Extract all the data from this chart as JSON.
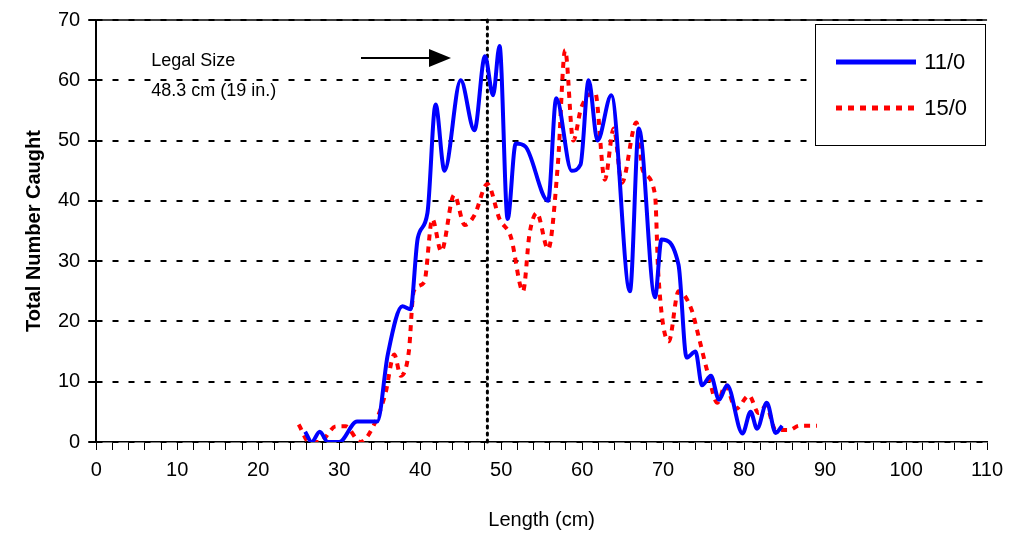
{
  "chart_data": {
    "type": "line",
    "xlabel": "Length (cm)",
    "ylabel": "Total Number Caught",
    "xlim": [
      0,
      110
    ],
    "ylim": [
      0,
      70
    ],
    "xticks": [
      0,
      {
        "value": 2,
        "label": null
      },
      {
        "value": 4,
        "label": null
      },
      {
        "value": 6,
        "label": null
      },
      {
        "value": 8,
        "label": null
      },
      10,
      {
        "value": 12,
        "label": null
      },
      {
        "value": 14,
        "label": null
      },
      {
        "value": 16,
        "label": null
      },
      {
        "value": 18,
        "label": null
      },
      20,
      {
        "value": 22,
        "label": null
      },
      {
        "value": 24,
        "label": null
      },
      {
        "value": 26,
        "label": null
      },
      {
        "value": 28,
        "label": null
      },
      30,
      {
        "value": 32,
        "label": null
      },
      {
        "value": 34,
        "label": null
      },
      {
        "value": 36,
        "label": null
      },
      {
        "value": 38,
        "label": null
      },
      40,
      {
        "value": 42,
        "label": null
      },
      {
        "value": 44,
        "label": null
      },
      {
        "value": 46,
        "label": null
      },
      {
        "value": 48,
        "label": null
      },
      50,
      {
        "value": 52,
        "label": null
      },
      {
        "value": 54,
        "label": null
      },
      {
        "value": 56,
        "label": null
      },
      {
        "value": 58,
        "label": null
      },
      60,
      {
        "value": 62,
        "label": null
      },
      {
        "value": 64,
        "label": null
      },
      {
        "value": 66,
        "label": null
      },
      {
        "value": 68,
        "label": null
      },
      70,
      {
        "value": 72,
        "label": null
      },
      {
        "value": 74,
        "label": null
      },
      {
        "value": 76,
        "label": null
      },
      {
        "value": 78,
        "label": null
      },
      80,
      {
        "value": 82,
        "label": null
      },
      {
        "value": 84,
        "label": null
      },
      {
        "value": 86,
        "label": null
      },
      {
        "value": 88,
        "label": null
      },
      90,
      {
        "value": 92,
        "label": null
      },
      {
        "value": 94,
        "label": null
      },
      {
        "value": 96,
        "label": null
      },
      {
        "value": 98,
        "label": null
      },
      100,
      {
        "value": 102,
        "label": null
      },
      {
        "value": 104,
        "label": null
      },
      {
        "value": 106,
        "label": null
      },
      {
        "value": 108,
        "label": null
      },
      110
    ],
    "yticks": [
      0,
      10,
      20,
      30,
      40,
      50,
      60,
      70
    ],
    "grid": "y",
    "legend": "top right",
    "marker": "none",
    "ref_lines": [
      {
        "axis": "x",
        "value": 48.3,
        "line_style": "dotted",
        "color": "#000000"
      }
    ],
    "annotations": [
      "Legal Size\n48.3 cm (19 in.)"
    ],
    "series": [
      {
        "name": "11/0",
        "color": "#0000ff",
        "line_style": "solid",
        "x": [
          25.8,
          26.6,
          27.6,
          28.6,
          30,
          32.2,
          34.7,
          36,
          37.8,
          38.8,
          39.7,
          40.9,
          41.9,
          43,
          45,
          46.7,
          48,
          49,
          49.8,
          50.8,
          51.8,
          53,
          55.8,
          56.8,
          58.7,
          59.8,
          60.8,
          61.9,
          63.6,
          65.9,
          67,
          69,
          69.8,
          71.9,
          72.9,
          74,
          74.8,
          75.9,
          76.9,
          77.9,
          79.8,
          80.8,
          81.6,
          82.8,
          83.9,
          84.7
        ],
        "values": [
          1.7,
          0,
          1.7,
          0,
          0,
          3.4,
          3.4,
          14.5,
          22.5,
          22,
          33.8,
          38,
          56,
          45,
          60,
          51.7,
          64,
          57.5,
          65.7,
          37,
          49.5,
          49,
          40,
          57,
          45,
          46,
          60,
          50,
          57.5,
          25,
          52,
          24,
          33.6,
          29.4,
          14,
          15,
          9.4,
          11,
          7,
          9.4,
          1.4,
          5,
          2.2,
          6.5,
          1.5,
          2.7
        ]
      },
      {
        "name": "15/0",
        "color": "#ff0000",
        "line_style": "dashed",
        "x": [
          25,
          26.3,
          27.6,
          29.6,
          30.8,
          32.6,
          34.5,
          35.7,
          36.8,
          37.6,
          38.6,
          39.2,
          40.5,
          41.5,
          42.6,
          44.2,
          45.5,
          46.7,
          48.3,
          49.8,
          51.2,
          52.7,
          53.5,
          54.4,
          55.8,
          57,
          57.9,
          58.9,
          59.9,
          61.6,
          62.8,
          63.9,
          64.9,
          66.7,
          67.5,
          69,
          69.4,
          70.7,
          71.9,
          73.5,
          74.4,
          75.6,
          76.7,
          77.7,
          79,
          80.6,
          81.8,
          82.7,
          83.9,
          85.6,
          86.8,
          89
        ],
        "values": [
          2.9,
          0,
          0,
          2.6,
          2.6,
          0,
          3.4,
          8,
          14.5,
          11,
          15,
          25,
          26.5,
          37,
          31.6,
          41,
          36,
          37.6,
          42.8,
          37,
          34,
          25,
          34.5,
          38,
          32,
          46,
          65,
          50,
          55.5,
          58,
          43.5,
          52,
          43,
          53,
          45,
          41,
          28,
          16.7,
          25,
          22,
          17.4,
          11,
          6.5,
          9.4,
          5.5,
          7.7,
          4.8,
          6,
          2,
          2,
          2.7,
          2.7
        ]
      }
    ]
  }
}
